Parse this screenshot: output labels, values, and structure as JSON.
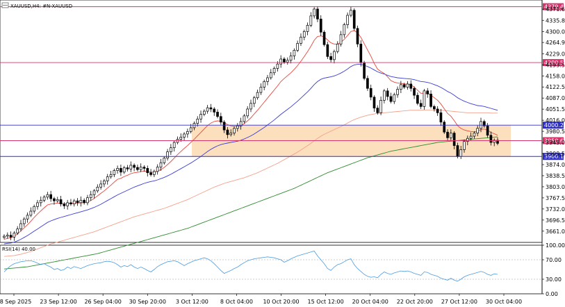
{
  "header": {
    "symbol_label": "XAUUSD,H4:  #N-XAUUSD"
  },
  "indicator": {
    "label": "RSI(14) 40.00",
    "levels": [
      "100.00",
      "70.00",
      "30.00",
      "0.00"
    ]
  },
  "colors": {
    "bull_candle": "#ffffff",
    "bear_candle": "#000000",
    "ema_fast": "#e8463c",
    "ema_mid": "#3a3ad6",
    "ema_slow": "#f4a08c",
    "ema_long": "#2e8b2e",
    "zone_fill": "#fbd9b0",
    "line_red": "#d6336c",
    "line_blue": "#2d2dc8",
    "rsi_line": "#4a9be0"
  },
  "chart_data": {
    "type": "candlestick",
    "symbol": "XAUUSD",
    "timeframe": "H4",
    "ylim": [
      3625,
      4392
    ],
    "price_axis_ticks": [
      "4371.60",
      "4335.85",
      "4300.00",
      "4264.95",
      "4229.00",
      "4193.50",
      "4158.00",
      "4122.50",
      "4087.00",
      "4051.50",
      "4016.00",
      "3980.50",
      "3945.00",
      "3909.50",
      "3874.00",
      "3838.50",
      "3803.00",
      "3767.50",
      "3732.00",
      "3696.50",
      "3661.00"
    ],
    "time_axis_labels": [
      "18 Sep 2025",
      "23 Sep 12:00",
      "26 Sep 04:00",
      "30 Sep 20:00",
      "3 Oct 12:00",
      "8 Oct 04:00",
      "10 Oct 20:00",
      "15 Oct 12:00",
      "20 Oct 04:00",
      "22 Oct 20:00",
      "27 Oct 12:00",
      "30 Oct 04:00"
    ],
    "horizontal_lines": [
      {
        "label": "4379.49",
        "value": 4379.49,
        "color": "#d6336c"
      },
      {
        "label": "4200.58",
        "value": 4200.58,
        "color": "#d6336c"
      },
      {
        "label": "4000.28",
        "value": 4000.28,
        "color": "#2d2dc8"
      },
      {
        "label": "3950.69",
        "value": 3950.69,
        "color": "#d6336c"
      },
      {
        "label": "3900.13",
        "value": 3900.13,
        "color": "#2d2dc8"
      }
    ],
    "zone": {
      "from_value": 3900.13,
      "to_value": 4000.28
    },
    "closes": [
      3645,
      3648,
      3642,
      3655,
      3668,
      3685,
      3700,
      3712,
      3725,
      3740,
      3752,
      3760,
      3770,
      3778,
      3765,
      3758,
      3762,
      3748,
      3742,
      3752,
      3748,
      3758,
      3752,
      3760,
      3752,
      3768,
      3778,
      3790,
      3802,
      3812,
      3822,
      3835,
      3842,
      3855,
      3862,
      3850,
      3864,
      3860,
      3872,
      3865,
      3858,
      3866,
      3862,
      3848,
      3842,
      3852,
      3866,
      3880,
      3895,
      3915,
      3928,
      3945,
      3955,
      3962,
      3972,
      3980,
      3992,
      4006,
      4020,
      4035,
      4045,
      4056,
      4052,
      4042,
      4028,
      4010,
      3985,
      3970,
      3975,
      3990,
      3998,
      4012,
      4030,
      4052,
      4070,
      4088,
      4105,
      4122,
      4140,
      4152,
      4168,
      4182,
      4196,
      4212,
      4202,
      4208,
      4222,
      4240,
      4262,
      4282,
      4300,
      4320,
      4350,
      4372,
      4340,
      4298,
      4258,
      4220,
      4210,
      4236,
      4260,
      4290,
      4322,
      4352,
      4368,
      4310,
      4260,
      4200,
      4150,
      4118,
      4090,
      4055,
      4040,
      4080,
      4110,
      4092,
      4076,
      4098,
      4115,
      4130,
      4122,
      4132,
      4118,
      4096,
      4070,
      4060,
      4110,
      4100,
      4060,
      4052,
      4040,
      4010,
      3978,
      3960,
      3975,
      3935,
      3900,
      3922,
      3948,
      3958,
      3965,
      3975,
      3990,
      4012,
      3998,
      3968,
      3945,
      3952,
      3942
    ],
    "ema_fast": [
      3635,
      3638,
      3640,
      3645,
      3652,
      3662,
      3672,
      3682,
      3693,
      3705,
      3716,
      3726,
      3736,
      3745,
      3748,
      3749,
      3751,
      3750,
      3748,
      3749,
      3749,
      3751,
      3751,
      3752,
      3752,
      3755,
      3759,
      3766,
      3774,
      3782,
      3790,
      3799,
      3808,
      3818,
      3827,
      3830,
      3836,
      3840,
      3845,
      3848,
      3849,
      3852,
      3853,
      3852,
      3850,
      3850,
      3853,
      3858,
      3865,
      3874,
      3884,
      3895,
      3906,
      3916,
      3926,
      3935,
      3945,
      3955,
      3966,
      3977,
      3988,
      3999,
      4007,
      4012,
      4014,
      4013,
      4008,
      4002,
      3998,
      3997,
      3997,
      3999,
      4005,
      4014,
      4024,
      4036,
      4048,
      4061,
      4074,
      4087,
      4100,
      4113,
      4126,
      4140,
      4150,
      4159,
      4168,
      4179,
      4191,
      4205,
      4220,
      4236,
      4253,
      4272,
      4284,
      4286,
      4283,
      4273,
      4264,
      4260,
      4260,
      4265,
      4275,
      4287,
      4300,
      4303,
      4296,
      4281,
      4261,
      4241,
      4221,
      4198,
      4180,
      4172,
      4166,
      4155,
      4143,
      4138,
      4135,
      4134,
      4132,
      4132,
      4129,
      4122,
      4112,
      4102,
      4103,
      4103,
      4096,
      4088,
      4080,
      4068,
      4053,
      4038,
      4029,
      4015,
      3999,
      3990,
      3985,
      3982,
      3980,
      3979,
      3981,
      3986,
      3988,
      3984,
      3977,
      3973,
      3968
    ],
    "ema_mid": [
      3620,
      3622,
      3623,
      3626,
      3630,
      3635,
      3641,
      3647,
      3654,
      3661,
      3668,
      3675,
      3682,
      3689,
      3694,
      3698,
      3702,
      3705,
      3708,
      3711,
      3714,
      3717,
      3720,
      3723,
      3726,
      3729,
      3733,
      3737,
      3742,
      3747,
      3753,
      3759,
      3765,
      3771,
      3777,
      3782,
      3787,
      3792,
      3797,
      3802,
      3806,
      3810,
      3814,
      3817,
      3820,
      3822,
      3825,
      3829,
      3833,
      3838,
      3843,
      3849,
      3855,
      3861,
      3867,
      3873,
      3879,
      3886,
      3893,
      3900,
      3908,
      3916,
      3923,
      3929,
      3934,
      3938,
      3941,
      3943,
      3945,
      3947,
      3949,
      3952,
      3956,
      3961,
      3966,
      3972,
      3979,
      3986,
      3993,
      4001,
      4009,
      4017,
      4026,
      4035,
      4043,
      4051,
      4059,
      4068,
      4077,
      4087,
      4097,
      4107,
      4118,
      4130,
      4140,
      4147,
      4151,
      4153,
      4155,
      4158,
      4162,
      4167,
      4173,
      4180,
      4188,
      4193,
      4195,
      4195,
      4192,
      4188,
      4183,
      4177,
      4171,
      4167,
      4164,
      4160,
      4156,
      4154,
      4152,
      4151,
      4150,
      4149,
      4148,
      4146,
      4143,
      4140,
      4139,
      4137,
      4134,
      4130,
      4126,
      4121,
      4115,
      4108,
      4103,
      4096,
      4088,
      4082,
      4077,
      4073,
      4069,
      4066,
      4063,
      4062,
      4060,
      4057,
      4054,
      4051,
      4048
    ],
    "ema_slow": [
      3580,
      3581,
      3582,
      3583,
      3585,
      3587,
      3590,
      3593,
      3596,
      3600,
      3604,
      3608,
      3612,
      3616,
      3620,
      3623,
      3626,
      3629,
      3632,
      3635,
      3638,
      3641,
      3644,
      3647,
      3650,
      3653,
      3656,
      3659,
      3663,
      3667,
      3671,
      3675,
      3679,
      3683,
      3687,
      3691,
      3695,
      3699,
      3703,
      3707,
      3710,
      3713,
      3716,
      3719,
      3722,
      3725,
      3728,
      3731,
      3734,
      3738,
      3742,
      3746,
      3750,
      3754,
      3758,
      3762,
      3767,
      3772,
      3777,
      3782,
      3787,
      3792,
      3797,
      3802,
      3806,
      3810,
      3814,
      3817,
      3820,
      3823,
      3826,
      3829,
      3832,
      3836,
      3840,
      3844,
      3848,
      3853,
      3858,
      3863,
      3868,
      3873,
      3878,
      3884,
      3890,
      3896,
      3902,
      3908,
      3914,
      3921,
      3928,
      3935,
      3942,
      3950,
      3958,
      3965,
      3971,
      3976,
      3981,
      3986,
      3991,
      3996,
      4001,
      4007,
      4013,
      4018,
      4022,
      4026,
      4029,
      4032,
      4034,
      4036,
      4038,
      4039,
      4040,
      4041,
      4042,
      4043,
      4044,
      4045,
      4046,
      4047,
      4048,
      4048,
      4048,
      4048,
      4049,
      4049,
      4049,
      4049,
      4049,
      4048,
      4047,
      4046,
      4045,
      4044,
      4043,
      4042,
      4041,
      4040,
      4040,
      4040,
      4040,
      4040,
      4040,
      4040,
      4039,
      4039,
      4039
    ],
    "ema_long": [
      3540,
      3541,
      3542,
      3543,
      3544,
      3545,
      3546,
      3547,
      3549,
      3551,
      3553,
      3555,
      3557,
      3559,
      3561,
      3563,
      3565,
      3567,
      3569,
      3571,
      3573,
      3575,
      3577,
      3579,
      3581,
      3583,
      3585,
      3587,
      3589,
      3592,
      3595,
      3598,
      3601,
      3604,
      3607,
      3610,
      3613,
      3616,
      3619,
      3622,
      3625,
      3628,
      3631,
      3634,
      3637,
      3640,
      3643,
      3646,
      3649,
      3652,
      3655,
      3658,
      3661,
      3664,
      3667,
      3670,
      3674,
      3678,
      3682,
      3686,
      3690,
      3694,
      3698,
      3702,
      3706,
      3710,
      3714,
      3718,
      3722,
      3726,
      3730,
      3734,
      3738,
      3742,
      3746,
      3750,
      3754,
      3758,
      3762,
      3766,
      3770,
      3774,
      3778,
      3782,
      3786,
      3790,
      3794,
      3798,
      3803,
      3808,
      3813,
      3818,
      3823,
      3828,
      3833,
      3838,
      3843,
      3848,
      3852,
      3856,
      3860,
      3864,
      3868,
      3872,
      3876,
      3880,
      3884,
      3888,
      3892,
      3896,
      3899,
      3902,
      3905,
      3908,
      3911,
      3914,
      3917,
      3919,
      3921,
      3923,
      3925,
      3927,
      3929,
      3931,
      3933,
      3935,
      3937,
      3939,
      3941,
      3943,
      3945,
      3946,
      3947,
      3948,
      3949,
      3950,
      3951,
      3952,
      3953,
      3954,
      3955,
      3956,
      3957,
      3958,
      3959,
      3960,
      3961,
      3962,
      3963
    ],
    "rsi": [
      45,
      52,
      58,
      62,
      64,
      66,
      67,
      68,
      68,
      66,
      63,
      60,
      62,
      58,
      55,
      50,
      52,
      48,
      50,
      55,
      52,
      56,
      54,
      52,
      55,
      58,
      60,
      62,
      63,
      64,
      66,
      67,
      66,
      64,
      60,
      55,
      58,
      56,
      60,
      55,
      52,
      55,
      52,
      48,
      45,
      50,
      56,
      60,
      63,
      66,
      67,
      68,
      66,
      62,
      58,
      62,
      65,
      68,
      70,
      72,
      74,
      72,
      68,
      62,
      55,
      48,
      42,
      45,
      48,
      52,
      55,
      60,
      64,
      68,
      70,
      72,
      73,
      74,
      75,
      76,
      75,
      74,
      72,
      70,
      65,
      68,
      72,
      75,
      78,
      80,
      82,
      84,
      86,
      88,
      78,
      70,
      62,
      52,
      48,
      55,
      60,
      62,
      66,
      70,
      72,
      60,
      52,
      46,
      40,
      36,
      34,
      35,
      33,
      40,
      45,
      42,
      40,
      43,
      45,
      47,
      46,
      47,
      45,
      42,
      40,
      38,
      45,
      44,
      40,
      38,
      36,
      32,
      30,
      28,
      32,
      28,
      26,
      30,
      35,
      38,
      40,
      42,
      44,
      46,
      44,
      40,
      38,
      41,
      40
    ]
  }
}
